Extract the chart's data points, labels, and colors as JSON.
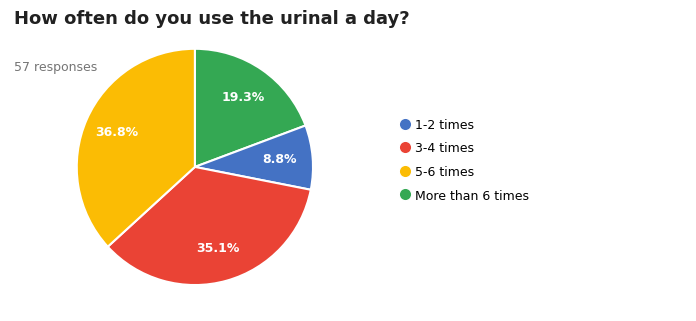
{
  "title": "How often do you use the urinal a day?",
  "subtitle": "57 responses",
  "labels": [
    "1-2 times",
    "3-4 times",
    "5-6 times",
    "More than 6 times"
  ],
  "values": [
    8.8,
    35.1,
    36.8,
    19.3
  ],
  "colors": [
    "#4472C4",
    "#EA4335",
    "#FBBC04",
    "#34A853"
  ],
  "title_fontsize": 13,
  "subtitle_fontsize": 9,
  "subtitle_color": "#757575",
  "pct_fontsize": 9,
  "legend_fontsize": 9,
  "pie_order": [
    3,
    0,
    1,
    2
  ],
  "startangle": 90,
  "figsize": [
    6.96,
    3.21
  ],
  "dpi": 100
}
